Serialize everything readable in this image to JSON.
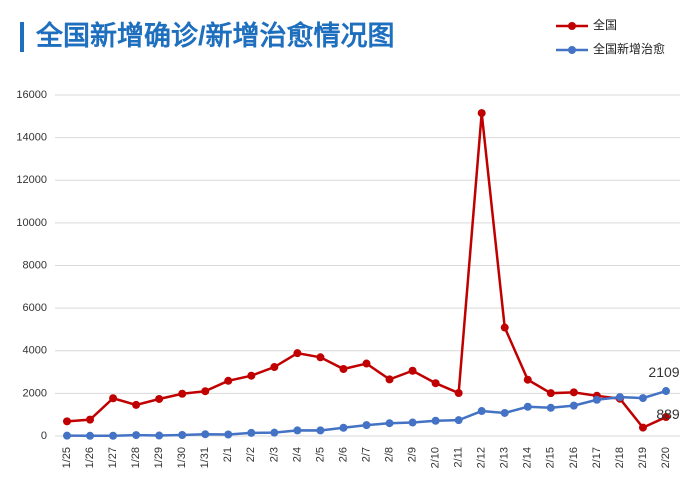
{
  "chart_data": {
    "type": "line",
    "title": "全国新增确诊/新增治愈情况图",
    "categories": [
      "1/25",
      "1/26",
      "1/27",
      "1/28",
      "1/29",
      "1/30",
      "1/31",
      "2/1",
      "2/2",
      "2/3",
      "2/4",
      "2/5",
      "2/6",
      "2/7",
      "2/8",
      "2/9",
      "2/10",
      "2/11",
      "2/12",
      "2/13",
      "2/14",
      "2/15",
      "2/16",
      "2/17",
      "2/18",
      "2/19",
      "2/20"
    ],
    "series": [
      {
        "name": "全国",
        "color": "#c00000",
        "values": [
          688,
          769,
          1771,
          1459,
          1737,
          1982,
          2102,
          2590,
          2829,
          3235,
          3887,
          3694,
          3143,
          3399,
          2656,
          3062,
          2478,
          2015,
          15152,
          5090,
          2641,
          2009,
          2048,
          1886,
          1749,
          394,
          889
        ]
      },
      {
        "name": "全国新增治愈",
        "color": "#4472c4",
        "values": [
          15,
          9,
          11,
          43,
          21,
          47,
          85,
          71,
          147,
          157,
          262,
          261,
          387,
          510,
          600,
          632,
          716,
          744,
          1171,
          1081,
          1373,
          1323,
          1425,
          1701,
          1824,
          1779,
          2109
        ]
      }
    ],
    "ylim": [
      0,
      16000
    ],
    "yticks": [
      0,
      2000,
      4000,
      6000,
      8000,
      10000,
      12000,
      14000,
      16000
    ],
    "grid": true,
    "legend": "top-right"
  }
}
